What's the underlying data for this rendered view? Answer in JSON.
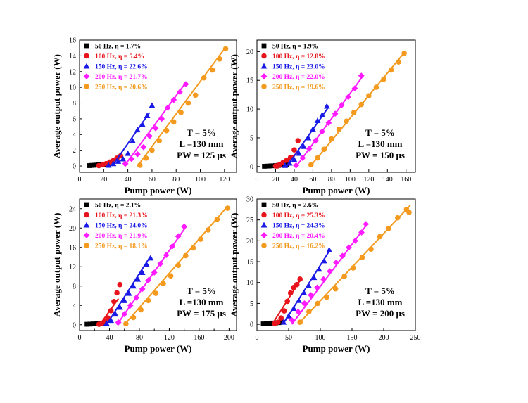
{
  "series_colors": [
    "#000000",
    "#e8141b",
    "#1a1ae6",
    "#ff1aff",
    "#f39a1f"
  ],
  "series_markers": [
    "square",
    "circle",
    "triangle",
    "diamond",
    "circle"
  ],
  "chart_data": [
    {
      "type": "scatter",
      "xlabel": "Pump power (W)",
      "ylabel": "Average output power (W)",
      "xlim": [
        0,
        130
      ],
      "ylim": [
        -0.8,
        16
      ],
      "xticks": [
        0,
        20,
        40,
        60,
        80,
        100,
        120
      ],
      "yticks": [
        0,
        2,
        4,
        6,
        8,
        10,
        12,
        14,
        16
      ],
      "legend_position": "top-left",
      "annotation": [
        "T = 5%",
        "L =130 mm",
        "PW = 125 μs"
      ],
      "series": [
        {
          "name": "50 Hz, η = 1.7%",
          "x": [
            8,
            10,
            12,
            14,
            16,
            18,
            20,
            22,
            24
          ],
          "y": [
            0.05,
            0.08,
            0.1,
            0.12,
            0.15,
            0.17,
            0.2,
            0.22,
            0.24
          ],
          "fit": [
            [
              8,
              0.03
            ],
            [
              24,
              0.26
            ]
          ]
        },
        {
          "name": "100 Hz, η = 5.4%",
          "x": [
            16,
            19,
            22,
            25,
            28,
            31,
            34
          ],
          "y": [
            0.05,
            0.15,
            0.3,
            0.5,
            0.7,
            1.0,
            1.3
          ],
          "fit": [
            [
              16,
              -0.1
            ],
            [
              36,
              1.25
            ]
          ]
        },
        {
          "name": "150 Hz, η = 22.6%",
          "x": [
            24,
            28,
            32,
            36,
            40,
            44,
            48,
            52,
            56,
            60
          ],
          "y": [
            0.1,
            0.3,
            0.6,
            0.9,
            1.6,
            3.2,
            4.6,
            5.3,
            6.4,
            7.7
          ],
          "fit": [
            [
              27,
              0
            ],
            [
              58,
              6.8
            ]
          ]
        },
        {
          "name": "200 Hz, η = 21.7%",
          "x": [
            38,
            43,
            48,
            53,
            58,
            63,
            68,
            73,
            78,
            83,
            88
          ],
          "y": [
            0.3,
            0.9,
            1.5,
            2.4,
            3.8,
            4.8,
            6.0,
            7.4,
            8.4,
            9.4,
            10.4
          ],
          "fit": [
            [
              37,
              0
            ],
            [
              88,
              10.6
            ]
          ]
        },
        {
          "name": "250 Hz, η = 20.6%",
          "x": [
            50,
            55,
            60,
            66,
            72,
            78,
            84,
            90,
            96,
            103,
            110,
            116,
            121
          ],
          "y": [
            0.1,
            1.0,
            2.0,
            3.2,
            4.5,
            5.6,
            6.8,
            8.0,
            9.0,
            11.2,
            12.2,
            13.6,
            14.9
          ],
          "fit": [
            [
              48,
              0
            ],
            [
              121,
              15.1
            ]
          ]
        }
      ]
    },
    {
      "type": "scatter",
      "xlabel": "Pump power (W)",
      "ylabel": "Average output power (W)",
      "xlim": [
        0,
        170
      ],
      "ylim": [
        -1,
        22
      ],
      "xticks": [
        0,
        20,
        40,
        60,
        80,
        100,
        120,
        140,
        160
      ],
      "yticks": [
        0,
        5,
        10,
        15,
        20
      ],
      "legend_position": "top-left",
      "annotation": [
        "T = 5%",
        "L =130 mm",
        "PW = 150 μs"
      ],
      "series": [
        {
          "name": "50 Hz, η = 1.9%",
          "x": [
            8,
            11,
            14,
            17,
            20,
            23,
            26,
            29,
            32
          ],
          "y": [
            0.05,
            0.08,
            0.1,
            0.13,
            0.16,
            0.2,
            0.25,
            0.3,
            0.35
          ],
          "fit": [
            [
              8,
              0.02
            ],
            [
              32,
              0.4
            ]
          ]
        },
        {
          "name": "100 Hz, η = 12.8%",
          "x": [
            20,
            24,
            28,
            32,
            36,
            40,
            44
          ],
          "y": [
            0.1,
            0.3,
            0.7,
            1.1,
            1.6,
            2.9,
            4.5
          ],
          "fit": [
            [
              22,
              -0.3
            ],
            [
              44,
              2.5
            ]
          ]
        },
        {
          "name": "150 Hz, η = 23.0%",
          "x": [
            30,
            35,
            40,
            45,
            50,
            55,
            60,
            65,
            70,
            75
          ],
          "y": [
            0.2,
            0.6,
            1.2,
            2.3,
            3.5,
            5.0,
            6.5,
            8.0,
            9.0,
            10.5
          ],
          "fit": [
            [
              32,
              0
            ],
            [
              77,
              10.4
            ]
          ]
        },
        {
          "name": "200 Hz, η = 22.0%",
          "x": [
            42,
            49,
            56,
            63,
            70,
            77,
            84,
            91,
            98,
            105,
            112
          ],
          "y": [
            0.2,
            1.5,
            3.1,
            4.5,
            6.1,
            7.6,
            9.2,
            10.7,
            12.1,
            13.6,
            15.8
          ],
          "fit": [
            [
              42,
              0
            ],
            [
              114,
              15.8
            ]
          ]
        },
        {
          "name": "250 Hz, η = 19.6%",
          "x": [
            58,
            65,
            72,
            80,
            88,
            96,
            104,
            112,
            120,
            128,
            136,
            144,
            152,
            158
          ],
          "y": [
            0.3,
            1.5,
            3.0,
            4.8,
            6.5,
            7.9,
            9.4,
            10.8,
            12.3,
            13.8,
            15.2,
            16.8,
            18.2,
            19.7
          ],
          "fit": [
            [
              57,
              0
            ],
            [
              158,
              19.8
            ]
          ]
        }
      ]
    },
    {
      "type": "scatter",
      "xlabel": "Pump power (W)",
      "ylabel": "Average output power (W)",
      "xlim": [
        0,
        210
      ],
      "ylim": [
        -1.2,
        26
      ],
      "xticks": [
        0,
        40,
        80,
        120,
        160,
        200
      ],
      "minor_xticks": [
        20,
        60,
        100,
        140,
        180
      ],
      "yticks": [
        0,
        4,
        8,
        12,
        16,
        20,
        24
      ],
      "legend_position": "top-left",
      "annotation": [
        "T = 5%",
        "L =130 mm",
        "PW = 175 μs"
      ],
      "series": [
        {
          "name": "50 Hz, η = 2.1%",
          "x": [
            10,
            14,
            18,
            22,
            26,
            30,
            34
          ],
          "y": [
            0.1,
            0.13,
            0.17,
            0.2,
            0.25,
            0.3,
            0.35
          ],
          "fit": [
            [
              10,
              0.05
            ],
            [
              36,
              0.45
            ]
          ]
        },
        {
          "name": "100 Hz, η = 21.3%",
          "x": [
            26,
            30,
            34,
            38,
            42,
            46,
            50,
            54
          ],
          "y": [
            0.1,
            0.3,
            0.7,
            1.4,
            2.9,
            4.8,
            6.6,
            8.3
          ],
          "fit": [
            [
              27,
              0
            ],
            [
              52,
              5.4
            ]
          ]
        },
        {
          "name": "150 Hz, η = 24.0%",
          "x": [
            36,
            42,
            48,
            54,
            60,
            66,
            72,
            78,
            84,
            90,
            95
          ],
          "y": [
            0.3,
            0.9,
            2.2,
            3.6,
            5.0,
            6.5,
            8.0,
            9.4,
            10.8,
            12.4,
            13.8
          ],
          "fit": [
            [
              36,
              0
            ],
            [
              95,
              14.2
            ]
          ]
        },
        {
          "name": "200 Hz, η = 21.9%",
          "x": [
            52,
            60,
            68,
            76,
            84,
            92,
            100,
            108,
            116,
            124,
            132,
            140
          ],
          "y": [
            0.5,
            2.2,
            4.0,
            5.6,
            7.4,
            9.2,
            10.8,
            12.6,
            14.4,
            16.2,
            18.3,
            20.3
          ],
          "fit": [
            [
              50,
              0
            ],
            [
              143,
              20.4
            ]
          ]
        },
        {
          "name": "250 Hz, η = 18.1%",
          "x": [
            62,
            72,
            82,
            92,
            102,
            112,
            122,
            132,
            142,
            152,
            162,
            172,
            184,
            198
          ],
          "y": [
            0.2,
            1.5,
            3.1,
            5.0,
            6.5,
            8.5,
            10.1,
            12.3,
            14.3,
            15.9,
            17.7,
            19.6,
            21.8,
            24.1
          ],
          "fit": [
            [
              60,
              0
            ],
            [
              198,
              24.5
            ]
          ]
        }
      ]
    },
    {
      "type": "scatter",
      "xlabel": "Pump power (W)",
      "ylabel": "Average output power (W)",
      "xlim": [
        0,
        250
      ],
      "ylim": [
        -1.5,
        30
      ],
      "xticks": [
        0,
        50,
        100,
        150,
        200,
        250
      ],
      "yticks": [
        0,
        5,
        10,
        15,
        20,
        25,
        30
      ],
      "legend_position": "top-left",
      "annotation": [
        "T = 5%",
        "L =130 mm",
        "PW = 200 μs"
      ],
      "series": [
        {
          "name": "50 Hz, η = 2.6%",
          "x": [
            10,
            15,
            20,
            25,
            30,
            35,
            40
          ],
          "y": [
            0.1,
            0.15,
            0.2,
            0.3,
            0.35,
            0.4,
            0.5
          ],
          "fit": [
            [
              10,
              0.05
            ],
            [
              42,
              0.6
            ]
          ]
        },
        {
          "name": "100 Hz, η = 25.3%",
          "x": [
            28,
            33,
            38,
            43,
            48,
            53,
            58,
            63,
            68
          ],
          "y": [
            0.2,
            0.5,
            1.5,
            3.2,
            5.5,
            7.5,
            8.8,
            9.5,
            10.8
          ],
          "fit": [
            [
              24,
              0
            ],
            [
              68,
              10.5
            ]
          ]
        },
        {
          "name": "150 Hz, η = 24.3%",
          "x": [
            42,
            50,
            58,
            66,
            74,
            82,
            90,
            98,
            106,
            114
          ],
          "y": [
            0.5,
            2.0,
            3.8,
            5.7,
            7.6,
            9.2,
            11.2,
            13.2,
            15.2,
            17.8
          ],
          "fit": [
            [
              41,
              0
            ],
            [
              116,
              18
            ]
          ]
        },
        {
          "name": "200 Hz, η = 20.4%",
          "x": [
            55,
            65,
            75,
            85,
            95,
            105,
            115,
            125,
            135,
            145,
            155,
            165,
            172
          ],
          "y": [
            1.0,
            3.0,
            5.0,
            7.0,
            8.8,
            10.8,
            12.7,
            14.8,
            16.4,
            18.4,
            20.0,
            22.0,
            24.0
          ],
          "fit": [
            [
              55,
              0
            ],
            [
              175,
              24.2
            ]
          ]
        },
        {
          "name": "250 Hz, η = 16.2%",
          "x": [
            68,
            82,
            96,
            110,
            124,
            138,
            152,
            166,
            180,
            194,
            208,
            222,
            236,
            240
          ],
          "y": [
            0.5,
            3.0,
            5.0,
            6.5,
            8.5,
            11.5,
            13.5,
            16.0,
            18.0,
            21.0,
            23.0,
            25.5,
            27.5,
            26.8
          ],
          "fit": [
            [
              65,
              0
            ],
            [
              242,
              28.5
            ]
          ]
        }
      ]
    }
  ]
}
